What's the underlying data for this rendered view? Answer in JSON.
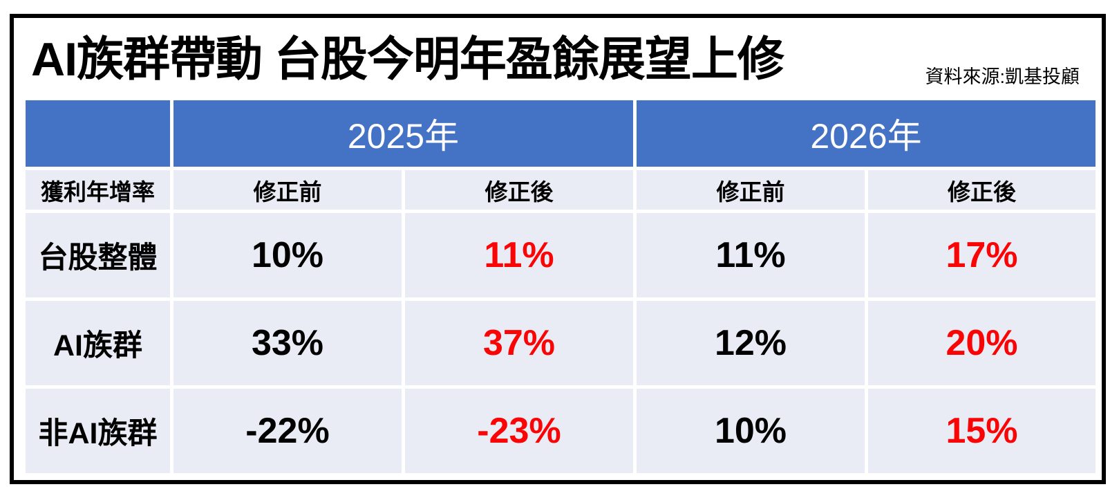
{
  "header": {
    "title": "AI族群帶動 台股今明年盈餘展望上修",
    "source": "資料來源:凱基投顧"
  },
  "table": {
    "corner_label": "獲利年增率",
    "year_groups": [
      {
        "label": "2025年",
        "columns": [
          "修正前",
          "修正後"
        ]
      },
      {
        "label": "2026年",
        "columns": [
          "修正前",
          "修正後"
        ]
      }
    ],
    "rows": [
      {
        "label": "台股整體",
        "cells": [
          {
            "text": "10%",
            "color": "#000000"
          },
          {
            "text": "11%",
            "color": "#FA0505"
          },
          {
            "text": "11%",
            "color": "#000000"
          },
          {
            "text": "17%",
            "color": "#FA0505"
          }
        ]
      },
      {
        "label": "AI族群",
        "cells": [
          {
            "text": "33%",
            "color": "#000000"
          },
          {
            "text": "37%",
            "color": "#FA0505"
          },
          {
            "text": "12%",
            "color": "#000000"
          },
          {
            "text": "20%",
            "color": "#FA0505"
          }
        ]
      },
      {
        "label": "非AI族群",
        "cells": [
          {
            "text": "-22%",
            "color": "#000000"
          },
          {
            "text": "-23%",
            "color": "#FA0505"
          },
          {
            "text": "10%",
            "color": "#000000"
          },
          {
            "text": "15%",
            "color": "#FA0505"
          }
        ]
      }
    ]
  },
  "colors": {
    "header_blue": "#4472C4",
    "row_bg": "#E9EBF5",
    "highlight_red": "#FA0505",
    "frame_border": "#000000",
    "header_text": "#FFFFFF"
  },
  "chart_data": {
    "type": "table",
    "title": "AI族群帶動 台股今明年盈餘展望上修",
    "source_note": "資料來源:凱基投顧",
    "row_header": "獲利年增率",
    "column_groups": [
      "2025年",
      "2026年"
    ],
    "columns": [
      "2025年 修正前",
      "2025年 修正後",
      "2026年 修正前",
      "2026年 修正後"
    ],
    "rows": [
      {
        "label": "台股整體",
        "values_pct": [
          10,
          11,
          11,
          17
        ]
      },
      {
        "label": "AI族群",
        "values_pct": [
          33,
          37,
          12,
          20
        ]
      },
      {
        "label": "非AI族群",
        "values_pct": [
          -22,
          -23,
          10,
          15
        ]
      }
    ],
    "notes": "修正後 (revised) values rendered in red; year headers white on blue"
  }
}
